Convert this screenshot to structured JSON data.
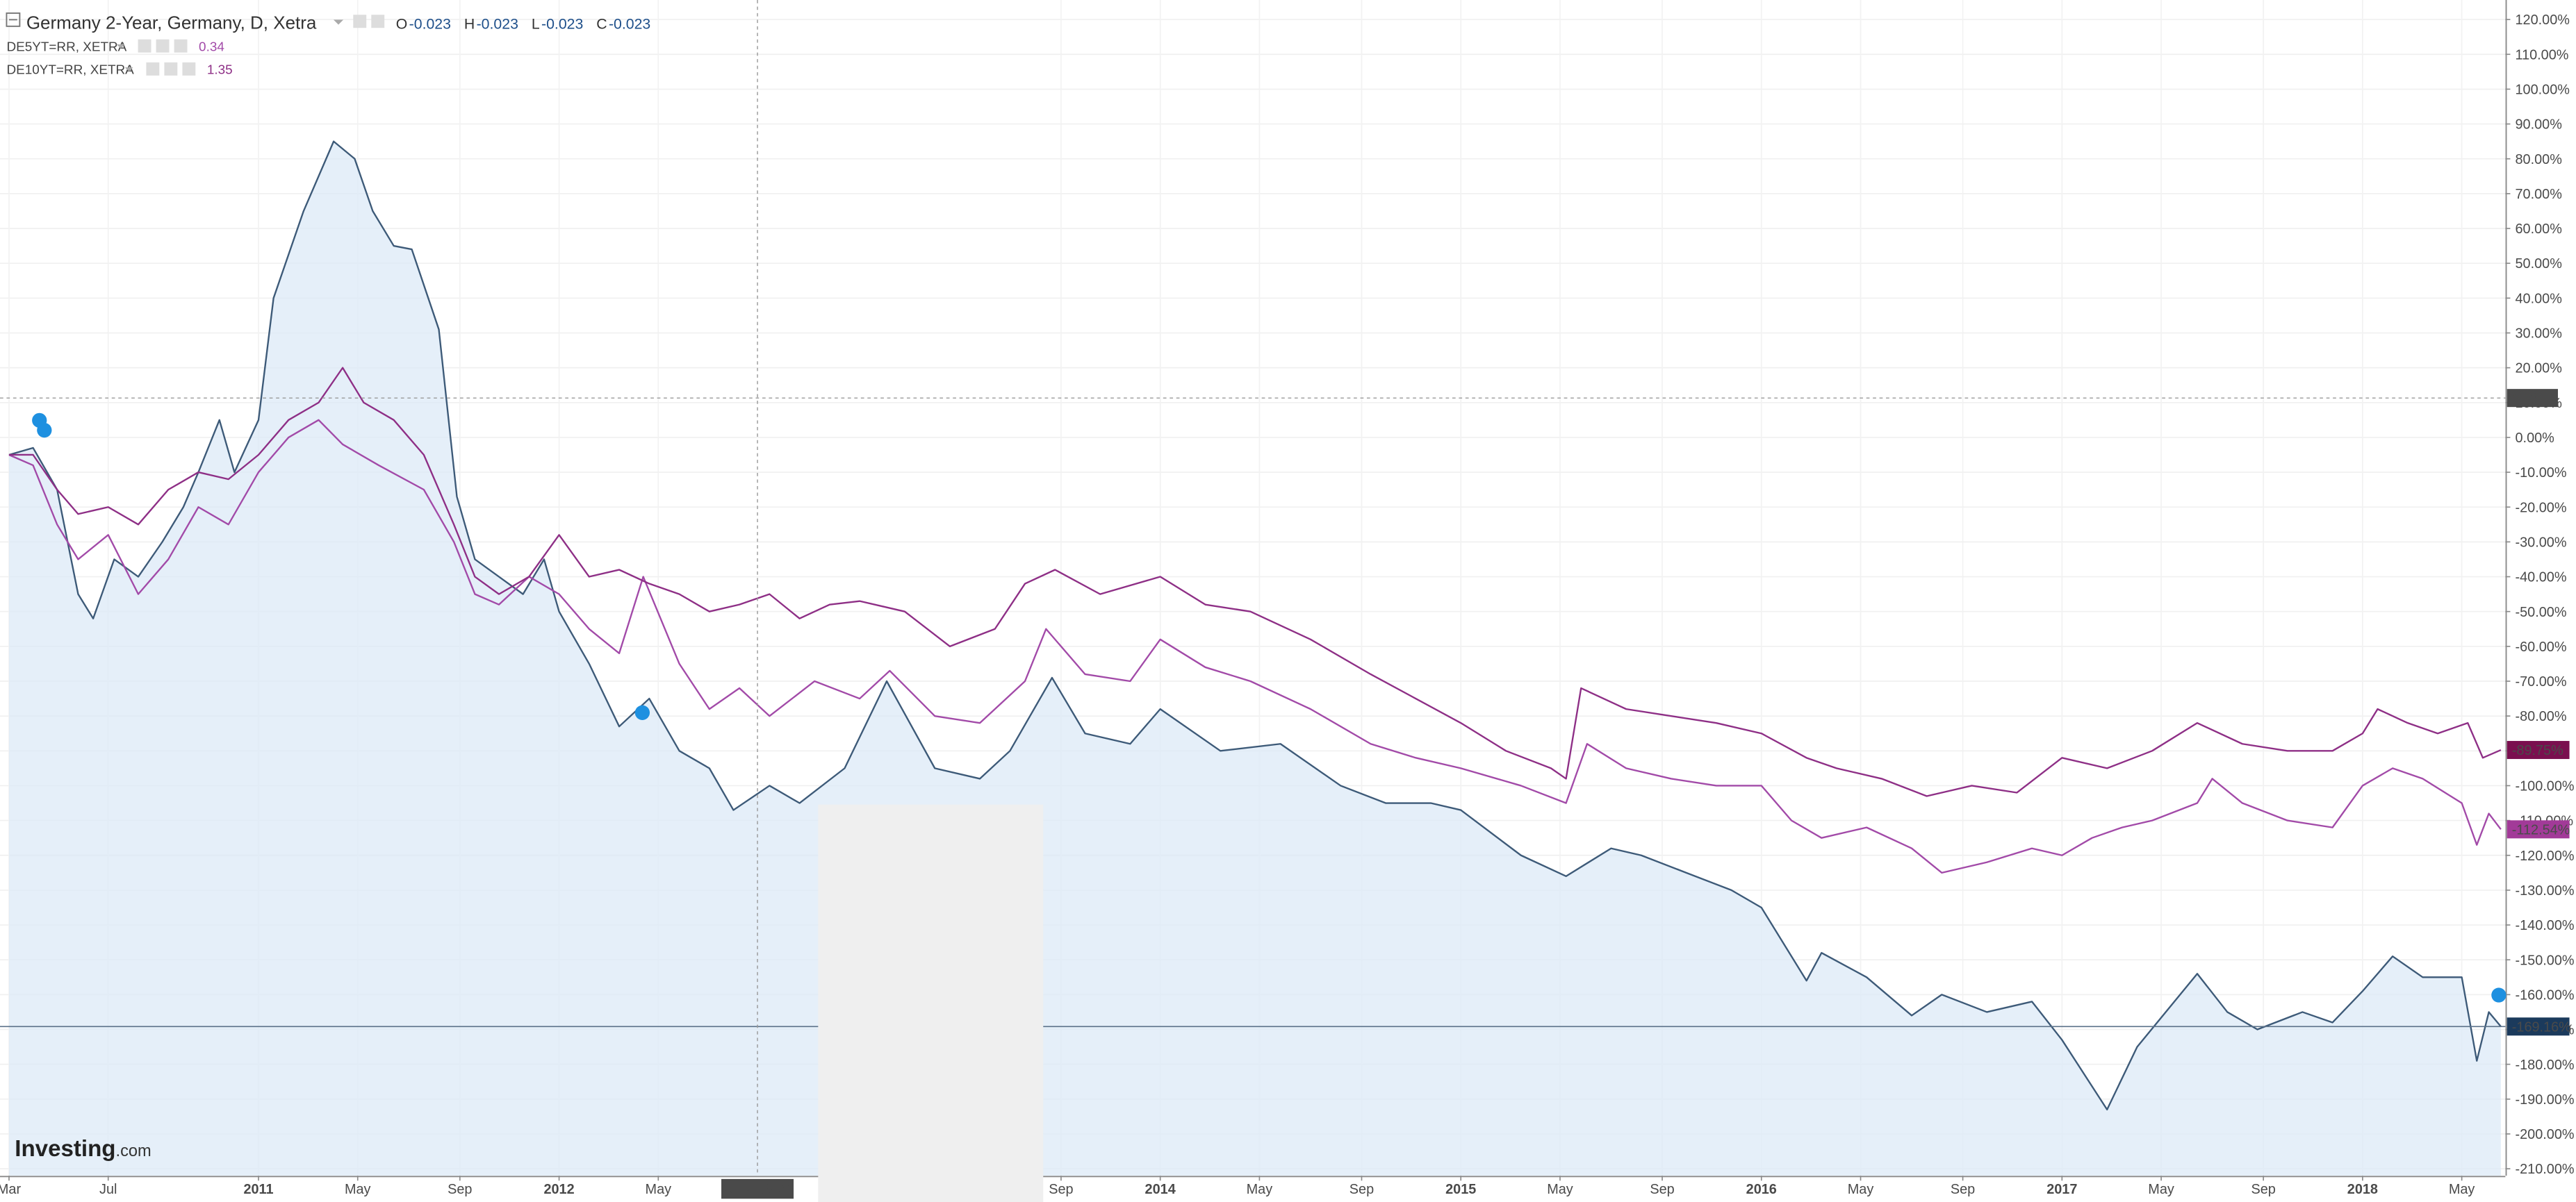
{
  "chart_data": {
    "type": "line",
    "title": "Germany 2-Year, Germany, D, Xetra",
    "ohlc": [
      {
        "label": "O",
        "value": -0.023
      },
      {
        "label": "H",
        "value": -0.023
      },
      {
        "label": "L",
        "value": -0.023
      },
      {
        "label": "C",
        "value": -0.023
      }
    ],
    "watermark": [
      "Investing",
      ".com"
    ],
    "xlim": [
      2010.14,
      2018.475
    ],
    "ylim": [
      -212,
      125.6
    ],
    "grid": true,
    "xticks": [
      {
        "value": 2010.17,
        "label": "Mar"
      },
      {
        "value": 2010.5,
        "label": "Jul"
      },
      2011,
      {
        "value": 2011.33,
        "label": "May"
      },
      {
        "value": 2011.67,
        "label": "Sep"
      },
      2012,
      {
        "value": 2012.33,
        "label": "May"
      },
      {
        "value": 2013.67,
        "label": "Sep"
      },
      2014,
      {
        "value": 2014.33,
        "label": "May"
      },
      {
        "value": 2014.67,
        "label": "Sep"
      },
      2015,
      {
        "value": 2015.33,
        "label": "May"
      },
      {
        "value": 2015.67,
        "label": "Sep"
      },
      2016,
      {
        "value": 2016.33,
        "label": "May"
      },
      {
        "value": 2016.67,
        "label": "Sep"
      },
      2017,
      {
        "value": 2017.33,
        "label": "May"
      },
      {
        "value": 2017.67,
        "label": "Sep"
      },
      2018,
      {
        "value": 2018.33,
        "label": "May"
      }
    ],
    "yticks": [
      {
        "value": 120,
        "label": "120.00%"
      },
      {
        "value": 110,
        "label": "110.00%"
      },
      {
        "value": 100,
        "label": "100.00%"
      },
      {
        "value": 90,
        "label": "90.00%"
      },
      {
        "value": 80,
        "label": "80.00%"
      },
      {
        "value": 70,
        "label": "70.00%"
      },
      {
        "value": 60,
        "label": "60.00%"
      },
      {
        "value": 50,
        "label": "50.00%"
      },
      {
        "value": 40,
        "label": "40.00%"
      },
      {
        "value": 30,
        "label": "30.00%"
      },
      {
        "value": 20,
        "label": "20.00%"
      },
      {
        "value": 10,
        "label": "10.00%"
      },
      {
        "value": 0,
        "label": "0.00%"
      },
      {
        "value": -10,
        "label": "-10.00%"
      },
      {
        "value": -20,
        "label": "-20.00%"
      },
      {
        "value": -30,
        "label": "-30.00%"
      },
      {
        "value": -40,
        "label": "-40.00%"
      },
      {
        "value": -50,
        "label": "-50.00%"
      },
      {
        "value": -60,
        "label": "-60.00%"
      },
      {
        "value": -70,
        "label": "-70.00%"
      },
      {
        "value": -80,
        "label": "-80.00%"
      },
      {
        "value": -90,
        "label": "-90.00%"
      },
      {
        "value": -100,
        "label": "-100.00%"
      },
      {
        "value": -110,
        "label": "-110.00%"
      },
      {
        "value": -120,
        "label": "-120.00%"
      },
      {
        "value": -130,
        "label": "-130.00%"
      },
      {
        "value": -140,
        "label": "-140.00%"
      },
      {
        "value": -150,
        "label": "-150.00%"
      },
      {
        "value": -160,
        "label": "-160.00%"
      },
      {
        "value": -170,
        "label": "-170.00%"
      },
      {
        "value": -180,
        "label": "-180.00%"
      },
      {
        "value": -190,
        "label": "-190.00%"
      },
      {
        "value": -200,
        "label": "-200.00%"
      },
      {
        "value": -210,
        "label": "-210.00%"
      }
    ],
    "crosshair": {
      "x": 2012.66,
      "x_label": "2012-08-31",
      "y": 11.317
    },
    "series": [
      {
        "name": "Germany 2-Year, Germany, D, Xetra",
        "color": "#3d5a78",
        "fill": "#dce9f7",
        "last_label": "-169.16%",
        "label_color": "#1b3a5c",
        "x": [
          2010.17,
          2010.25,
          2010.33,
          2010.4,
          2010.45,
          2010.52,
          2010.6,
          2010.68,
          2010.75,
          2010.8,
          2010.87,
          2010.92,
          2011.0,
          2011.05,
          2011.15,
          2011.25,
          2011.32,
          2011.38,
          2011.45,
          2011.51,
          2011.6,
          2011.66,
          2011.72,
          2011.8,
          2011.88,
          2011.95,
          2012.0,
          2012.1,
          2012.2,
          2012.3,
          2012.4,
          2012.5,
          2012.58,
          2012.7,
          2012.8,
          2012.95,
          2013.09,
          2013.25,
          2013.4,
          2013.5,
          2013.64,
          2013.75,
          2013.9,
          2014.0,
          2014.2,
          2014.4,
          2014.6,
          2014.75,
          2014.9,
          2015.0,
          2015.2,
          2015.35,
          2015.5,
          2015.6,
          2015.75,
          2015.9,
          2016.0,
          2016.15,
          2016.2,
          2016.35,
          2016.5,
          2016.6,
          2016.75,
          2016.9,
          2017.0,
          2017.15,
          2017.25,
          2017.45,
          2017.55,
          2017.65,
          2017.8,
          2017.9,
          2018.0,
          2018.1,
          2018.2,
          2018.33,
          2018.38,
          2018.42,
          2018.46
        ],
        "values": [
          -5,
          -3,
          -15,
          -45,
          -52,
          -35,
          -40,
          -30,
          -20,
          -10,
          5,
          -10,
          5,
          40,
          65,
          85,
          80,
          65,
          55,
          54,
          31,
          -17,
          -35,
          -40,
          -45,
          -35,
          -50,
          -65,
          -83,
          -75,
          -90,
          -95,
          -107,
          -100,
          -105,
          -95,
          -70,
          -95,
          -98,
          -90,
          -69,
          -85,
          -88,
          -78,
          -90,
          -88,
          -100,
          -105,
          -105,
          -107,
          -120,
          -126,
          -118,
          -120,
          -125,
          -130,
          -135,
          -156,
          -148,
          -155,
          -166,
          -160,
          -165,
          -162,
          -173,
          -193,
          -175,
          -154,
          -165,
          -170,
          -165,
          -168,
          -159,
          -149,
          -155,
          -155,
          -179,
          -165,
          -169.16
        ]
      },
      {
        "name": "DE5YT=RR, XETRA",
        "legend_value": 0.34,
        "color": "#a24aa8",
        "last_label": "-112.54%",
        "label_color": "#a23a98",
        "x": [
          2010.17,
          2010.25,
          2010.33,
          2010.4,
          2010.5,
          2010.6,
          2010.7,
          2010.8,
          2010.9,
          2011.0,
          2011.1,
          2011.2,
          2011.28,
          2011.4,
          2011.55,
          2011.65,
          2011.72,
          2011.8,
          2011.9,
          2012.0,
          2012.1,
          2012.2,
          2012.28,
          2012.4,
          2012.5,
          2012.6,
          2012.7,
          2012.85,
          2013.0,
          2013.1,
          2013.25,
          2013.4,
          2013.55,
          2013.62,
          2013.75,
          2013.9,
          2014.0,
          2014.15,
          2014.3,
          2014.5,
          2014.7,
          2014.85,
          2015.0,
          2015.2,
          2015.35,
          2015.42,
          2015.55,
          2015.7,
          2015.85,
          2016.0,
          2016.1,
          2016.2,
          2016.35,
          2016.5,
          2016.6,
          2016.75,
          2016.9,
          2017.0,
          2017.1,
          2017.2,
          2017.3,
          2017.45,
          2017.5,
          2017.6,
          2017.75,
          2017.9,
          2018.0,
          2018.1,
          2018.2,
          2018.33,
          2018.38,
          2018.42,
          2018.46
        ],
        "values": [
          -5,
          -8,
          -25,
          -35,
          -28,
          -45,
          -35,
          -20,
          -25,
          -10,
          0,
          5,
          -2,
          -8,
          -15,
          -30,
          -45,
          -48,
          -40,
          -45,
          -55,
          -62,
          -40,
          -65,
          -78,
          -72,
          -80,
          -70,
          -75,
          -67,
          -80,
          -82,
          -70,
          -55,
          -68,
          -70,
          -58,
          -66,
          -70,
          -78,
          -88,
          -92,
          -95,
          -100,
          -105,
          -88,
          -95,
          -98,
          -100,
          -100,
          -110,
          -115,
          -112,
          -118,
          -125,
          -122,
          -118,
          -120,
          -115,
          -112,
          -110,
          -105,
          -98,
          -105,
          -110,
          -112,
          -100,
          -95,
          -98,
          -105,
          -117,
          -108,
          -112.54
        ]
      },
      {
        "name": "DE10YT=RR, XETRA",
        "legend_value": 1.35,
        "color": "#8e2f86",
        "last_label": "-89.75%",
        "label_color": "#7a0f4f",
        "x": [
          2010.17,
          2010.25,
          2010.33,
          2010.4,
          2010.5,
          2010.6,
          2010.7,
          2010.8,
          2010.9,
          2011.0,
          2011.1,
          2011.2,
          2011.28,
          2011.35,
          2011.45,
          2011.55,
          2011.65,
          2011.72,
          2011.8,
          2011.9,
          2012.0,
          2012.1,
          2012.2,
          2012.3,
          2012.4,
          2012.5,
          2012.6,
          2012.7,
          2012.8,
          2012.9,
          2013.0,
          2013.15,
          2013.3,
          2013.45,
          2013.55,
          2013.65,
          2013.8,
          2014.0,
          2014.15,
          2014.3,
          2014.5,
          2014.7,
          2014.85,
          2015.0,
          2015.15,
          2015.3,
          2015.35,
          2015.4,
          2015.55,
          2015.7,
          2015.85,
          2016.0,
          2016.15,
          2016.25,
          2016.4,
          2016.55,
          2016.7,
          2016.85,
          2017.0,
          2017.15,
          2017.3,
          2017.45,
          2017.6,
          2017.75,
          2017.9,
          2018.0,
          2018.05,
          2018.15,
          2018.25,
          2018.35,
          2018.4,
          2018.46
        ],
        "values": [
          -5,
          -5,
          -15,
          -22,
          -20,
          -25,
          -15,
          -10,
          -12,
          -5,
          5,
          10,
          20,
          10,
          5,
          -5,
          -25,
          -40,
          -45,
          -40,
          -28,
          -40,
          -38,
          -42,
          -45,
          -50,
          -48,
          -45,
          -52,
          -48,
          -47,
          -50,
          -60,
          -55,
          -42,
          -38,
          -45,
          -40,
          -48,
          -50,
          -58,
          -68,
          -75,
          -82,
          -90,
          -95,
          -98,
          -72,
          -78,
          -80,
          -82,
          -85,
          -92,
          -95,
          -98,
          -103,
          -100,
          -102,
          -92,
          -95,
          -90,
          -82,
          -88,
          -90,
          -90,
          -85,
          -78,
          -82,
          -85,
          -82,
          -92,
          -89.75
        ]
      }
    ]
  }
}
